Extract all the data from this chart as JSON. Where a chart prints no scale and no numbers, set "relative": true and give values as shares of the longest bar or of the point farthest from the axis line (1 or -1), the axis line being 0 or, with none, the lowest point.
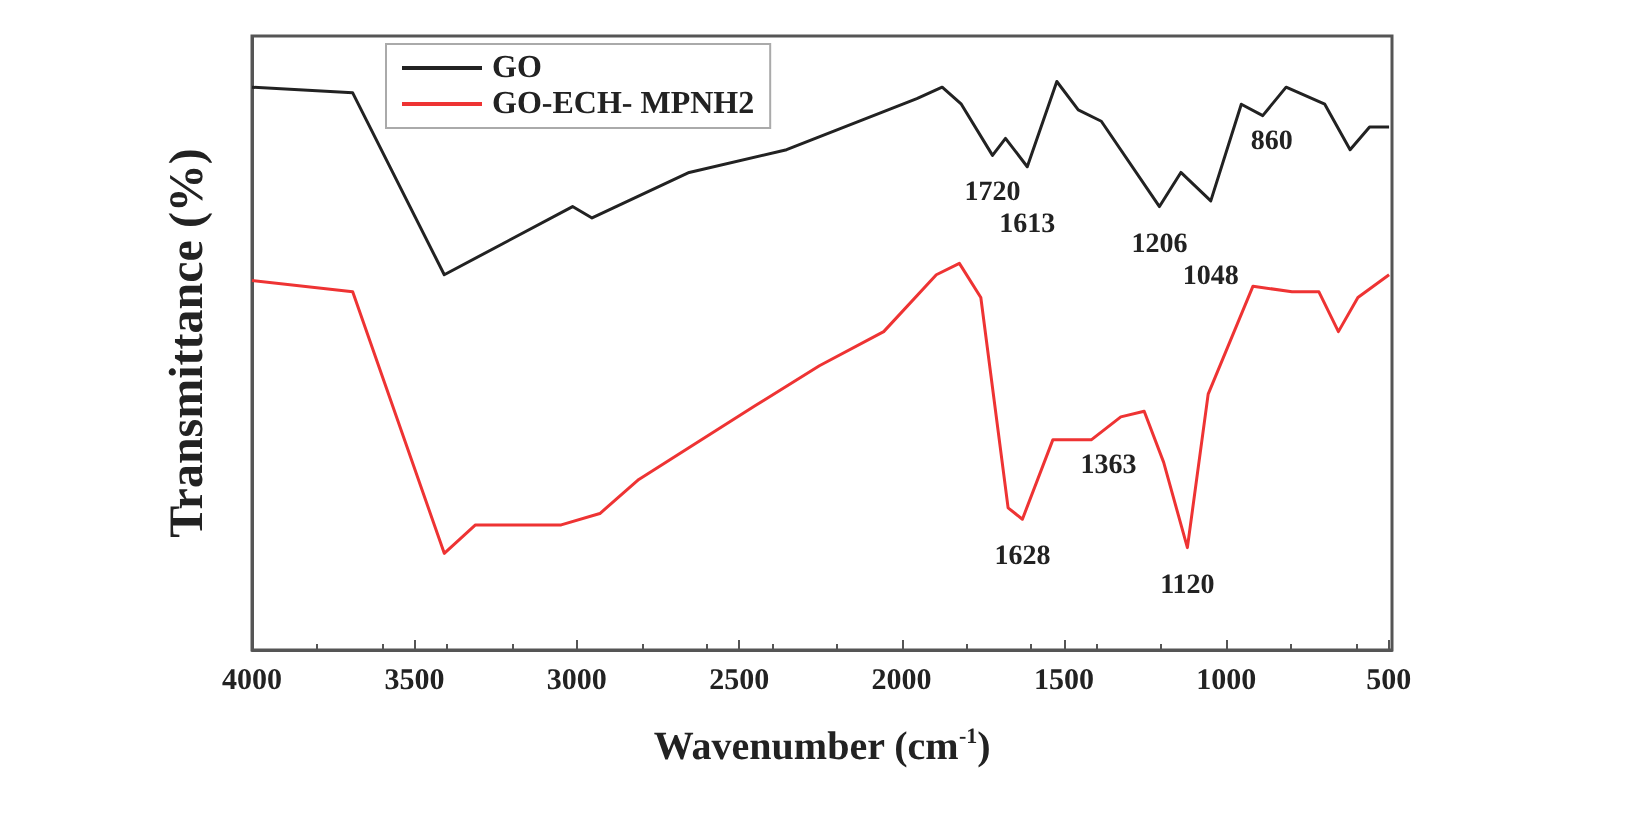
{
  "chart_data": {
    "type": "line",
    "xlabel": "Wavenumber (cm$^{-1}$)",
    "ylabel": "Transmittance (%)",
    "relative": true,
    "xlim": [
      4000,
      490
    ],
    "xticks": [
      4000,
      3500,
      3000,
      2500,
      2000,
      1500,
      1000,
      500
    ],
    "grid": false,
    "legend": "top left",
    "marker": "none",
    "line_style": "solid",
    "series": [
      {
        "name": "GO",
        "color": "#222222",
        "x": [
          4000,
          3690,
          3408,
          3013,
          2953,
          2654,
          2354,
          1953,
          1875,
          1816,
          1720,
          1680,
          1613,
          1522,
          1456,
          1385,
          1206,
          1140,
          1048,
          954,
          888,
          816,
          697,
          619,
          559,
          499
        ],
        "values": [
          0.99,
          0.98,
          0.66,
          0.78,
          0.76,
          0.84,
          0.88,
          0.97,
          0.99,
          0.96,
          0.87,
          0.9,
          0.85,
          1.0,
          0.95,
          0.93,
          0.78,
          0.84,
          0.79,
          0.96,
          0.94,
          0.99,
          0.96,
          0.88,
          0.92,
          0.92
        ]
      },
      {
        "name": "GO-ECH- MPNH2",
        "color": "#ee3333",
        "x": [
          4000,
          3690,
          3408,
          3312,
          3048,
          2929,
          2809,
          2450,
          2253,
          2055,
          1893,
          1822,
          1756,
          1672,
          1628,
          1534,
          1415,
          1325,
          1253,
          1193,
          1120,
          1056,
          918,
          798,
          715,
          655,
          595,
          499
        ],
        "values": [
          0.65,
          0.63,
          0.17,
          0.22,
          0.22,
          0.24,
          0.3,
          0.43,
          0.5,
          0.56,
          0.66,
          0.68,
          0.62,
          0.25,
          0.23,
          0.37,
          0.37,
          0.41,
          0.42,
          0.33,
          0.18,
          0.45,
          0.64,
          0.63,
          0.63,
          0.56,
          0.62,
          0.66
        ]
      }
    ],
    "annotations": [
      {
        "text": "1720",
        "x": 1720,
        "y": 0.87
      },
      {
        "text": "1613",
        "x": 1613,
        "y": 0.85
      },
      {
        "text": "1206",
        "x": 1206,
        "y": 0.78
      },
      {
        "text": "1048",
        "x": 1048,
        "y": 0.79
      },
      {
        "text": "860",
        "x": 860,
        "y": 0.96
      },
      {
        "text": "1628",
        "x": 1628,
        "y": 0.23
      },
      {
        "text": "1363",
        "x": 1363,
        "y": 0.39
      },
      {
        "text": "1120",
        "x": 1120,
        "y": 0.18
      }
    ]
  }
}
